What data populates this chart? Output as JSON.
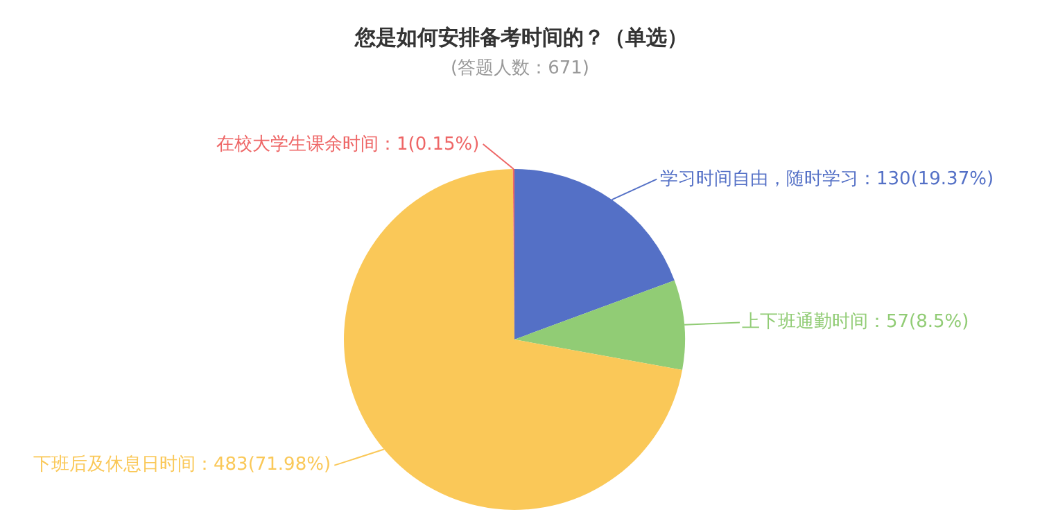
{
  "chart_data": {
    "type": "pie",
    "title": "您是如何安排备考时间的？（单选）",
    "subtitle": "(答题人数：671)",
    "categories": [
      "学习时间自由，随时学习",
      "上下班通勤时间",
      "下班后及休息日时间",
      "在校大学生课余时间"
    ],
    "values": [
      130,
      57,
      483,
      1
    ],
    "colors": [
      "#5470c6",
      "#91cc75",
      "#fac858",
      "#ee6666"
    ],
    "value_labels": [
      "：130(19.37%)",
      "：57(8.5%)",
      "：483(71.98%)",
      "：1(0.15%)"
    ],
    "legend": false
  }
}
